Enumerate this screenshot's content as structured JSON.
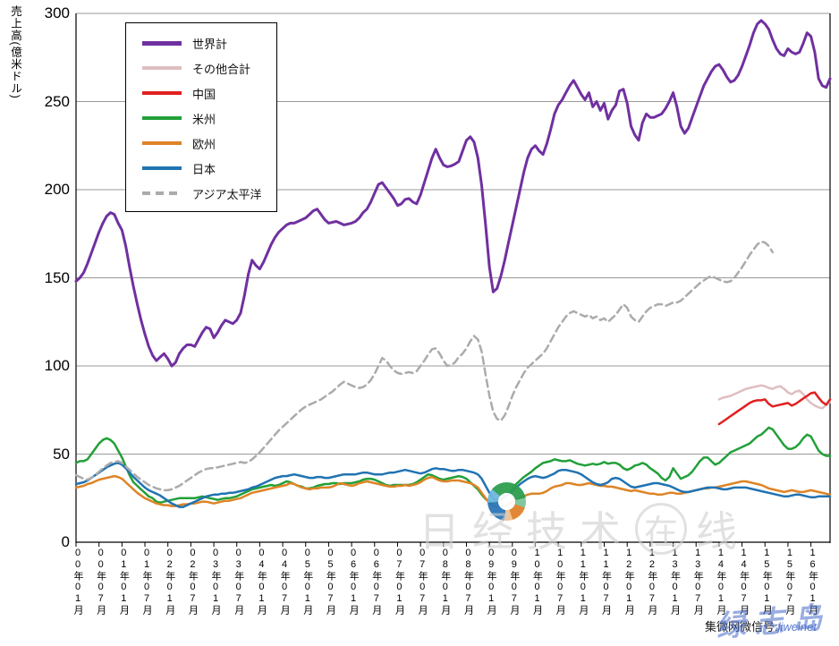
{
  "y_axis": {
    "title": "売上高(億米ドル)",
    "tick_values": [
      0,
      50,
      100,
      150,
      200,
      250,
      300
    ]
  },
  "x_axis": {
    "tick_labels": [
      "00年01月",
      "00年07月",
      "01年01月",
      "01年07月",
      "02年01月",
      "02年07月",
      "03年01月",
      "03年07月",
      "04年01月",
      "04年07月",
      "05年01月",
      "05年07月",
      "06年01月",
      "06年07月",
      "07年01月",
      "07年07月",
      "08年01月",
      "08年07月",
      "09年01月",
      "09年07月",
      "10年01月",
      "10年07月",
      "11年01月",
      "11年07月",
      "12年01月",
      "12年07月",
      "13年01月",
      "13年07月",
      "14年01月",
      "14年07月",
      "15年01月",
      "15年07月",
      "16年01月"
    ]
  },
  "watermarks": {
    "center_pre": "日经技术",
    "center_circled": "在",
    "center_post": "线",
    "bottom_label": "集微网微信号:",
    "bottom_handle": "jiweinet",
    "script": "绿志岛"
  },
  "chart_data": {
    "type": "line",
    "title": "",
    "ylabel": "売上高(億米ドル)",
    "ylim": [
      0,
      300
    ],
    "ytick_step": 50,
    "x_start": "2000年1月",
    "x_end": "2016年6月",
    "x_frequency": "monthly",
    "grid": "horizontal",
    "legend_position": "upper-left-inside",
    "xtick_labels": [
      "00年01月",
      "00年07月",
      "01年01月",
      "01年07月",
      "02年01月",
      "02年07月",
      "03年01月",
      "03年07月",
      "04年01月",
      "04年07月",
      "05年01月",
      "05年07月",
      "06年01月",
      "06年07月",
      "07年01月",
      "07年07月",
      "08年01月",
      "08年07月",
      "09年01月",
      "09年07月",
      "10年01月",
      "10年07月",
      "11年01月",
      "11年07月",
      "12年01月",
      "12年07月",
      "13年01月",
      "13年07月",
      "14年01月",
      "14年07月",
      "15年01月",
      "15年07月",
      "16年01月"
    ],
    "series": [
      {
        "key": "world",
        "name": "世界計",
        "color": "#7030A0",
        "width": 3,
        "dash": null,
        "start_index": 0,
        "values": [
          148,
          150,
          153,
          158,
          164,
          170,
          176,
          181,
          185,
          187,
          186,
          181,
          177,
          168,
          156,
          145,
          135,
          126,
          118,
          111,
          106,
          103,
          105,
          107,
          104,
          100,
          102,
          107,
          110,
          112,
          112,
          111,
          115,
          119,
          122,
          121,
          116,
          119,
          123,
          126,
          125,
          124,
          126,
          130,
          140,
          152,
          160,
          157,
          155,
          159,
          164,
          169,
          173,
          176,
          178,
          180,
          181,
          181,
          182,
          183,
          184,
          186,
          188,
          189,
          186,
          183,
          181,
          181.5,
          182,
          181,
          180,
          180.5,
          181,
          182,
          184,
          187,
          189,
          193,
          198,
          203,
          204,
          201,
          198,
          195,
          191,
          192,
          194.5,
          195,
          193,
          192,
          197,
          204,
          211,
          218,
          223,
          218,
          214,
          213,
          213.5,
          214.5,
          216,
          222,
          228,
          230,
          227,
          218,
          202,
          180,
          156,
          142,
          144,
          151,
          160,
          170,
          180,
          190,
          200,
          210,
          218,
          223,
          225,
          222,
          220,
          226,
          234,
          243,
          248,
          251,
          255,
          259,
          262,
          258,
          254,
          251,
          255,
          247,
          250,
          245,
          249,
          240,
          245,
          248,
          256,
          257,
          249,
          236,
          231,
          228,
          238,
          243,
          241,
          241,
          242,
          243,
          246,
          250,
          255,
          247,
          236,
          232,
          235,
          241,
          247,
          253,
          259,
          263,
          267,
          270,
          271,
          268,
          264,
          261,
          262,
          265,
          270,
          276,
          282,
          289,
          294,
          296,
          294,
          291,
          285,
          280,
          277,
          276,
          280,
          278,
          277,
          278,
          283,
          289,
          287,
          278,
          263,
          259,
          258,
          263
        ]
      },
      {
        "key": "others-total",
        "name": "その他合計",
        "color": "#DFBEC1",
        "width": 2.5,
        "dash": null,
        "start_index": 168,
        "values": [
          81,
          82,
          82.5,
          83,
          84,
          85,
          86,
          87,
          87.5,
          88,
          88.5,
          89,
          88.5,
          87.5,
          87,
          88,
          88.5,
          87,
          85,
          84,
          85.5,
          86,
          84,
          81,
          79,
          77.5,
          76.5,
          76,
          78,
          79.5
        ]
      },
      {
        "key": "china",
        "name": "中国",
        "color": "#E02020",
        "width": 2.5,
        "dash": null,
        "start_index": 168,
        "values": [
          67,
          68.5,
          70,
          71.5,
          73,
          74.5,
          76,
          77.5,
          79,
          80,
          80.5,
          80.5,
          81,
          78.5,
          77,
          77.5,
          78,
          78.5,
          79,
          77.5,
          78.5,
          80,
          81.5,
          83,
          84.5,
          85,
          82,
          79.5,
          78,
          81
        ]
      },
      {
        "key": "americas",
        "name": "米州",
        "color": "#22A038",
        "width": 2.5,
        "dash": null,
        "start_index": 0,
        "values": [
          45,
          46,
          46,
          47,
          50,
          53,
          56,
          58,
          59,
          58,
          56,
          52,
          48,
          43,
          38,
          34,
          32,
          30,
          28,
          26,
          25,
          23,
          22.5,
          23,
          23.5,
          24,
          24.5,
          25,
          25,
          25,
          25,
          25,
          25.5,
          26,
          25.5,
          25,
          24.5,
          24,
          24.5,
          25,
          25,
          25.5,
          26,
          27,
          28,
          29,
          30,
          30.5,
          31,
          31.5,
          32,
          32.5,
          32,
          32.5,
          33.5,
          34.5,
          34,
          33,
          32,
          31.5,
          30.5,
          30.5,
          31,
          32,
          32.5,
          33,
          33,
          33.5,
          33.5,
          33,
          33.5,
          33.5,
          33.5,
          34,
          34.5,
          35.5,
          36,
          36,
          35.5,
          34.5,
          33.5,
          32.5,
          32,
          32.5,
          32.5,
          32.5,
          32.5,
          32.5,
          33,
          34,
          35.5,
          37,
          38.5,
          38,
          37,
          36,
          35.5,
          36,
          36.5,
          37,
          37.5,
          37,
          36,
          34,
          32,
          30,
          27,
          24.5,
          23,
          22.5,
          23,
          24.5,
          26,
          27.5,
          30,
          33,
          35,
          37,
          38.5,
          40,
          42,
          43.5,
          45,
          45.5,
          46,
          47,
          46.5,
          46,
          46,
          46.5,
          45.5,
          44.5,
          44,
          43.5,
          44,
          44.5,
          44,
          44.5,
          45.5,
          44.5,
          45,
          45,
          44,
          42,
          41,
          42,
          43.5,
          44,
          45,
          44,
          42,
          40.5,
          39,
          36.5,
          35,
          37,
          42,
          39,
          36,
          37,
          38,
          40,
          43,
          46,
          48,
          48,
          46,
          44,
          45,
          47,
          49,
          51,
          52,
          53,
          54,
          55,
          56,
          58,
          60,
          61,
          63,
          65,
          64,
          61,
          58,
          55,
          53,
          53,
          54,
          56,
          59,
          61,
          60,
          56,
          52,
          50,
          49,
          49
        ]
      },
      {
        "key": "europe",
        "name": "欧州",
        "color": "#DE8426",
        "width": 2.5,
        "dash": null,
        "start_index": 0,
        "values": [
          31,
          31.5,
          32,
          33,
          33.5,
          34.5,
          35.5,
          36,
          36.5,
          37,
          37.5,
          37,
          36,
          34,
          32,
          30,
          28,
          26.5,
          25,
          24,
          23,
          22,
          21.5,
          21,
          21,
          20.5,
          20.5,
          21,
          21.5,
          21.5,
          22,
          22,
          22.5,
          23,
          23,
          22.5,
          22,
          22.5,
          23,
          23.5,
          23.5,
          24,
          24.5,
          25,
          26,
          27,
          28,
          28.5,
          29,
          29.5,
          30,
          30.5,
          31,
          31.5,
          32,
          32.5,
          33.5,
          33,
          32,
          31,
          30.5,
          30,
          30.5,
          30.5,
          31,
          31,
          31,
          31.5,
          32.5,
          33.5,
          33,
          32.5,
          32,
          32.5,
          33.5,
          34,
          34.5,
          34,
          33.5,
          33,
          32.5,
          32,
          31.5,
          31.5,
          32,
          32,
          32.5,
          32,
          32.5,
          33,
          34,
          35.5,
          36.5,
          37,
          36,
          35,
          34.5,
          34.5,
          35,
          35,
          35,
          34.5,
          34,
          33.5,
          32.5,
          31,
          28,
          25,
          22,
          20.5,
          20,
          20,
          20.5,
          21.5,
          23,
          24,
          25,
          26,
          27,
          27.5,
          27.5,
          27.5,
          28,
          29,
          30.5,
          31.5,
          32,
          32.5,
          33.5,
          33.5,
          33,
          32.5,
          32.5,
          33,
          33.5,
          33,
          32.5,
          32,
          32,
          31.5,
          31.5,
          31,
          30.5,
          30,
          29.5,
          29,
          29.5,
          29,
          28.5,
          28,
          27.5,
          27.5,
          27,
          27,
          27.5,
          28,
          28,
          27.5,
          27.5,
          28,
          28.5,
          29,
          29.5,
          30,
          30.5,
          30.5,
          31,
          31,
          31.5,
          32,
          32.5,
          33,
          33.5,
          34,
          34.5,
          34.5,
          34,
          33.5,
          33,
          32.5,
          31.5,
          30.5,
          30,
          29.5,
          29,
          28.5,
          29,
          29.5,
          29,
          28.5,
          28.5,
          29,
          29.5,
          29,
          28.5,
          28,
          27.5,
          27
        ]
      },
      {
        "key": "japan",
        "name": "日本",
        "color": "#2173B2",
        "width": 2.5,
        "dash": null,
        "start_index": 0,
        "values": [
          33,
          33.5,
          34,
          35,
          36.5,
          38,
          39.5,
          41,
          42.5,
          43.5,
          44.5,
          45,
          44,
          42,
          39.5,
          37,
          35,
          33,
          31,
          29.5,
          28.5,
          27.5,
          26.5,
          25,
          23.5,
          22,
          21,
          20,
          20,
          21,
          22,
          23,
          24,
          25,
          26,
          26.5,
          27,
          27,
          27.5,
          27.5,
          28,
          28,
          28.5,
          29,
          29.5,
          30,
          31,
          31.5,
          32.5,
          33.5,
          34.5,
          35.5,
          36.5,
          37,
          37.5,
          37.5,
          38,
          38.5,
          38,
          37.5,
          37,
          36.5,
          36.5,
          37,
          37,
          36.5,
          36.5,
          37,
          37.5,
          38,
          38.5,
          38.5,
          38.5,
          38.5,
          39,
          39.5,
          39.5,
          39,
          38.5,
          38.5,
          38.5,
          39,
          39.5,
          39.5,
          40,
          40.5,
          41,
          40.5,
          40,
          39.5,
          39,
          39.5,
          40.5,
          41.5,
          42,
          41.5,
          41.5,
          41,
          40.5,
          40.5,
          41,
          41,
          40.5,
          40,
          39.5,
          38.5,
          36,
          32,
          28,
          25,
          23.5,
          24,
          25.5,
          27.5,
          29,
          31,
          33,
          34.5,
          36,
          37,
          37.5,
          37,
          36.5,
          37,
          38,
          39,
          40.5,
          41,
          41,
          40.5,
          40,
          39.5,
          38.5,
          37,
          35.5,
          34,
          33,
          32.5,
          33,
          34,
          36,
          36.5,
          36,
          34.5,
          33,
          31.5,
          31,
          31.5,
          32,
          32.5,
          33,
          33.5,
          33.5,
          33,
          32.5,
          32,
          31,
          30,
          29,
          28.5,
          28.5,
          29,
          29.5,
          30,
          30.5,
          31,
          31,
          31,
          30.5,
          30,
          30,
          30.5,
          31,
          31,
          31,
          31,
          30.5,
          30,
          29.5,
          29,
          28.5,
          28,
          27.5,
          27,
          26.5,
          26,
          26,
          26.5,
          27,
          27,
          26.5,
          26,
          25.5,
          25.5,
          26,
          26,
          26,
          26
        ]
      },
      {
        "key": "asia-pacific",
        "name": "アジア太平洋",
        "color": "#ABABAB",
        "width": 2.5,
        "dash": "8 5",
        "start_index": 0,
        "values": [
          38,
          37,
          36,
          35.5,
          36.5,
          38,
          40,
          42,
          43.5,
          45,
          45.5,
          46,
          45,
          43,
          41,
          39,
          37,
          35.5,
          34,
          32.5,
          31.5,
          30.5,
          30,
          29.5,
          29.5,
          30,
          31,
          32,
          33.5,
          35,
          36.5,
          38,
          39.5,
          40.5,
          41.5,
          42,
          42,
          42.5,
          43,
          43.5,
          44,
          44.5,
          45,
          45.5,
          45,
          45.5,
          47,
          49,
          51,
          53.5,
          56,
          58.5,
          61,
          63.5,
          65.5,
          67.5,
          69.5,
          71.5,
          73.5,
          75.5,
          77,
          78,
          79,
          80,
          81,
          82.5,
          84,
          85.5,
          87.5,
          89.5,
          91,
          90,
          89,
          88,
          87.5,
          88,
          89.5,
          92,
          95.5,
          100,
          104.5,
          103,
          100,
          97.5,
          96,
          95.5,
          96,
          96.5,
          96,
          97,
          100,
          103,
          106.5,
          109.5,
          110,
          107,
          103,
          100,
          100.5,
          102,
          105,
          107,
          110,
          114,
          117,
          115,
          108,
          95,
          83,
          74,
          70,
          69,
          72,
          77,
          83,
          88,
          92,
          96,
          99,
          101,
          103,
          105,
          107,
          110,
          114,
          118,
          122,
          125,
          128,
          130,
          131,
          130,
          129,
          128,
          129,
          127,
          128,
          126,
          127,
          125,
          127,
          129,
          132,
          135,
          133,
          128,
          126,
          125,
          128,
          131,
          133,
          134,
          135,
          135,
          134,
          135,
          136,
          136,
          137,
          139,
          141,
          143,
          145,
          147,
          148.5,
          150,
          151,
          150,
          149,
          148,
          147.5,
          148,
          150,
          153,
          156,
          159.5,
          163,
          166,
          169,
          170.5,
          170,
          168,
          164.5
        ]
      }
    ]
  }
}
